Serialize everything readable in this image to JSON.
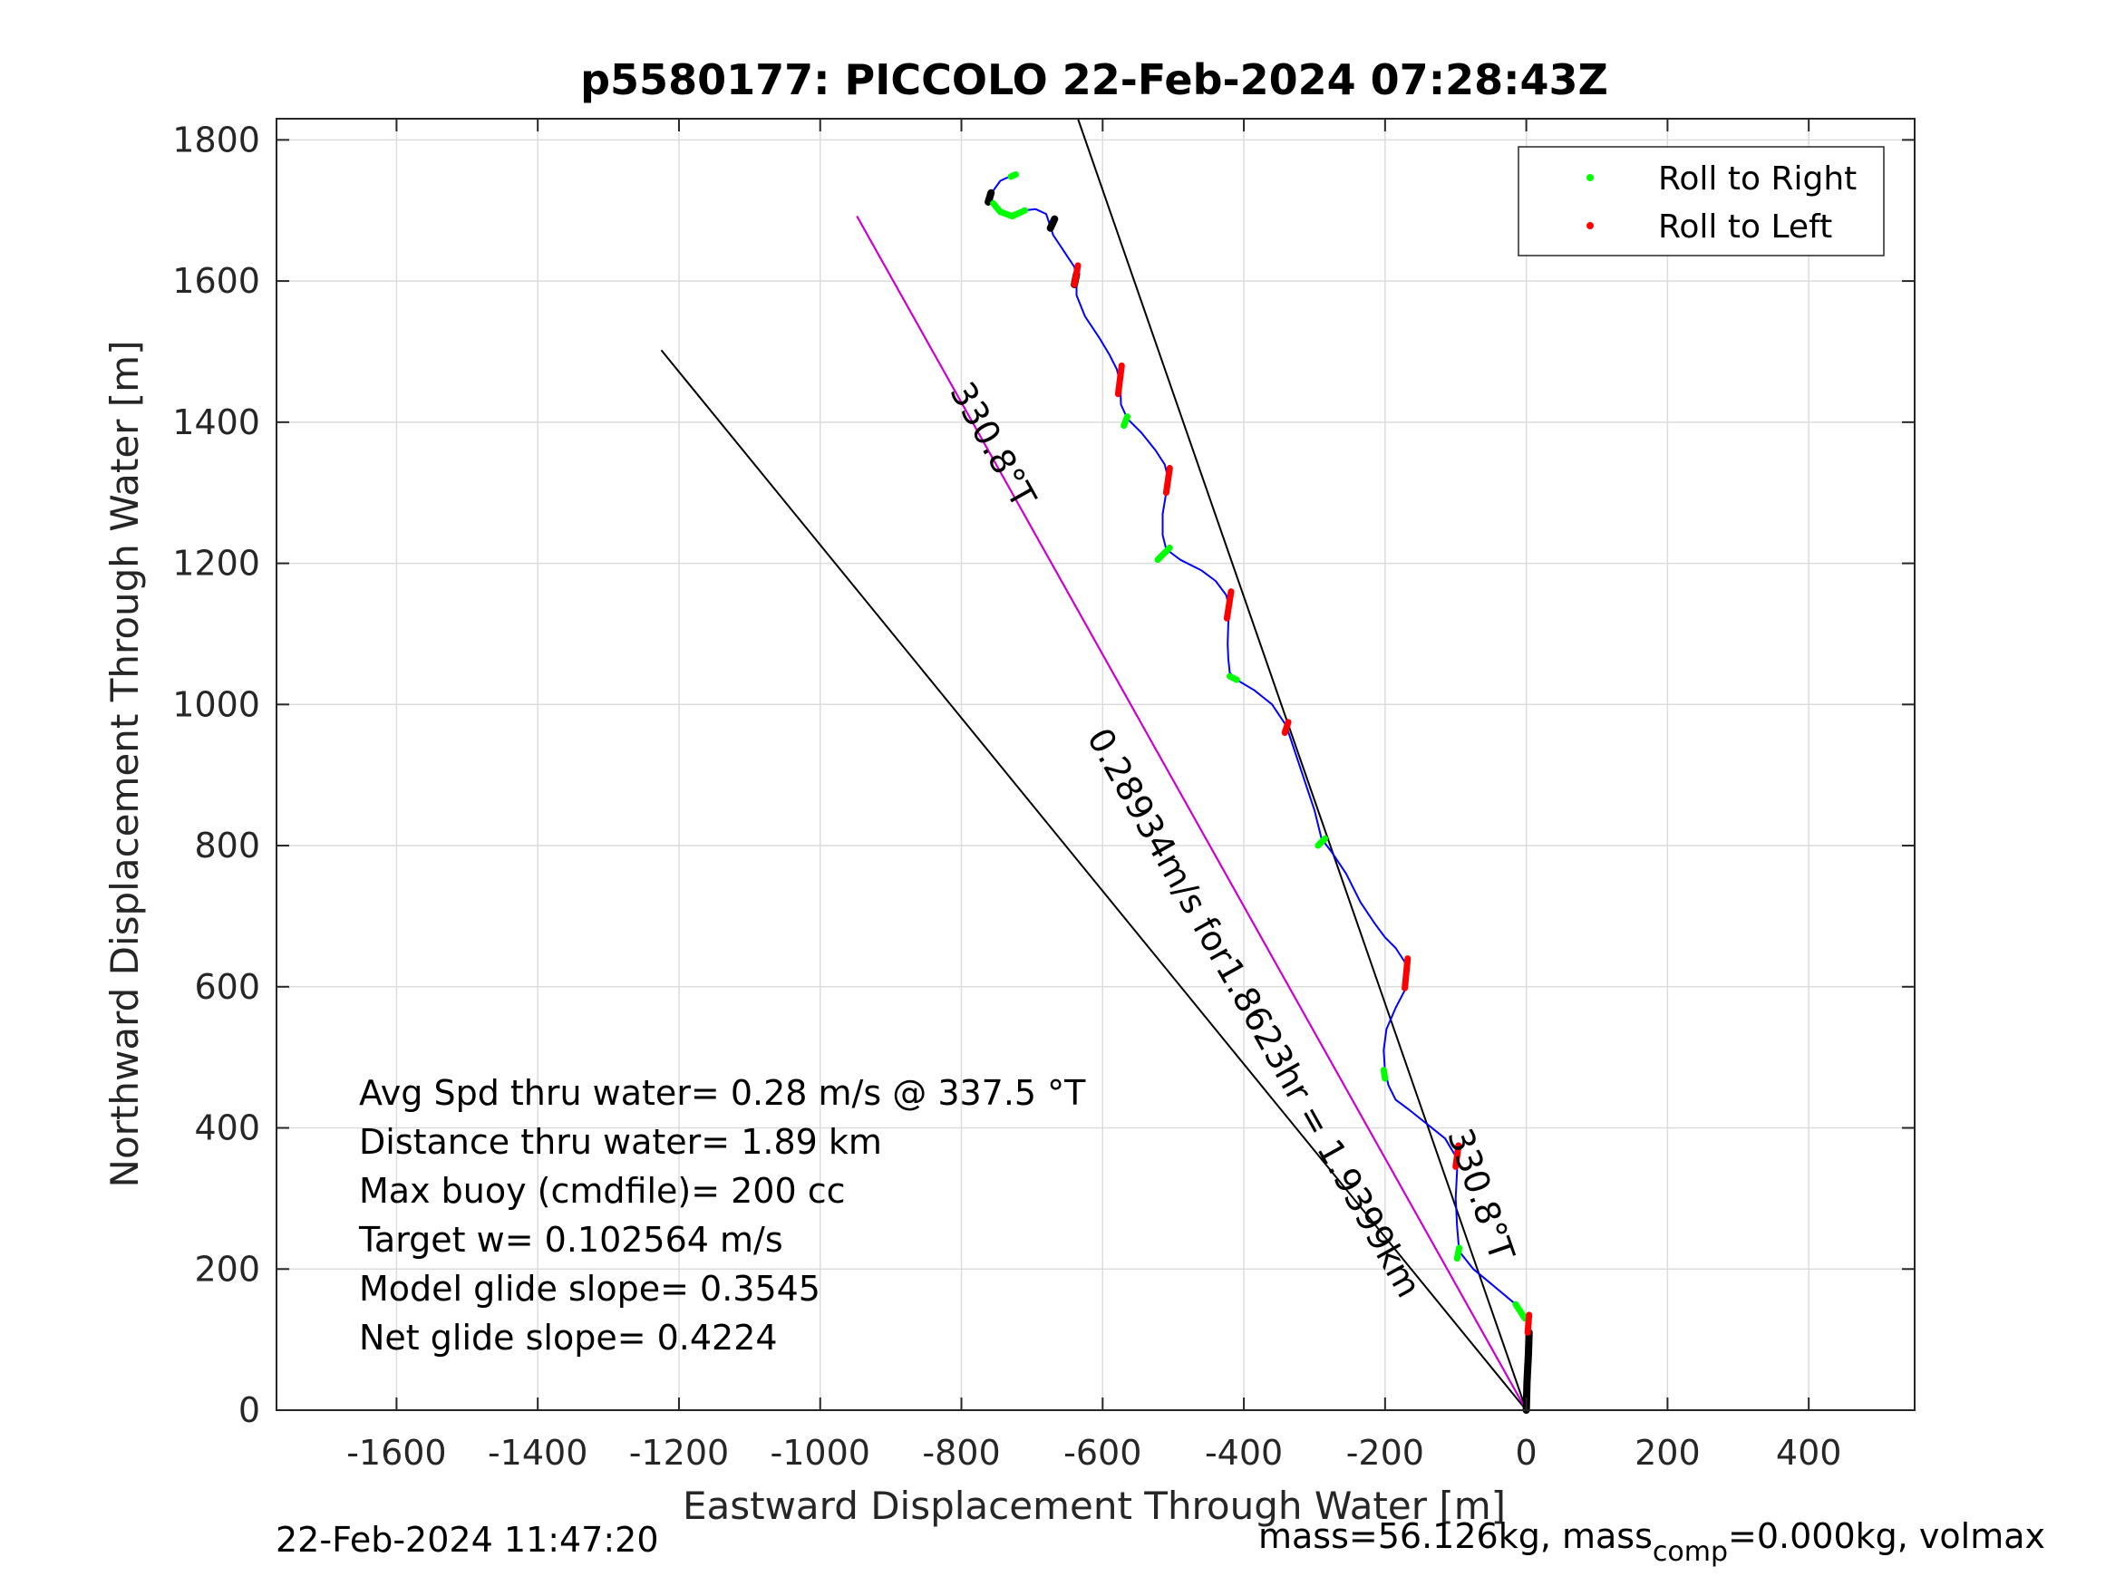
{
  "chart_data": {
    "type": "line",
    "title": "p5580177: PICCOLO 22-Feb-2024 07:28:43Z",
    "xlabel": "Eastward Displacement Through Water [m]",
    "ylabel": "Northward Displacement Through Water [m]",
    "xlim": [
      -1770,
      550
    ],
    "ylim": [
      0,
      1830
    ],
    "x_ticks": [
      -1600,
      -1400,
      -1200,
      -1000,
      -800,
      -600,
      -400,
      -200,
      0,
      200,
      400
    ],
    "x_tick_labels": [
      "-1600",
      "-1400",
      "-1200",
      "-1000",
      "-800",
      "-600",
      "-400",
      "-200",
      "0",
      "200",
      "400"
    ],
    "y_ticks": [
      0,
      200,
      400,
      600,
      800,
      1000,
      1200,
      1400,
      1600,
      1800
    ],
    "y_tick_labels": [
      "0",
      "200",
      "400",
      "600",
      "800",
      "1000",
      "1200",
      "1400",
      "1600",
      "1800"
    ],
    "grid": true,
    "legend_position": "top-right",
    "colors": {
      "track": "#0000ff",
      "roll_right": "#00ff00",
      "roll_left": "#ff0000",
      "surface": "#000000",
      "heading_line": "#cc00cc",
      "reference_line": "#000000"
    },
    "legend": [
      {
        "label": "Roll to Right",
        "color": "#00ff00"
      },
      {
        "label": "Roll to Left",
        "color": "#ff0000"
      }
    ],
    "track": [
      [
        0,
        0
      ],
      [
        2,
        40
      ],
      [
        3,
        80
      ],
      [
        4,
        110
      ],
      [
        2,
        130
      ],
      [
        -15,
        150
      ],
      [
        -45,
        175
      ],
      [
        -75,
        200
      ],
      [
        -95,
        225
      ],
      [
        -98,
        260
      ],
      [
        -100,
        300
      ],
      [
        -98,
        340
      ],
      [
        -100,
        360
      ],
      [
        -115,
        385
      ],
      [
        -140,
        405
      ],
      [
        -165,
        425
      ],
      [
        -185,
        440
      ],
      [
        -195,
        460
      ],
      [
        -200,
        480
      ],
      [
        -202,
        510
      ],
      [
        -198,
        540
      ],
      [
        -185,
        570
      ],
      [
        -172,
        595
      ],
      [
        -168,
        615
      ],
      [
        -172,
        635
      ],
      [
        -185,
        655
      ],
      [
        -200,
        670
      ],
      [
        -215,
        690
      ],
      [
        -235,
        720
      ],
      [
        -255,
        760
      ],
      [
        -275,
        790
      ],
      [
        -290,
        810
      ],
      [
        -300,
        850
      ],
      [
        -310,
        880
      ],
      [
        -320,
        910
      ],
      [
        -330,
        940
      ],
      [
        -340,
        970
      ],
      [
        -360,
        1000
      ],
      [
        -385,
        1020
      ],
      [
        -410,
        1035
      ],
      [
        -420,
        1045
      ],
      [
        -422,
        1065
      ],
      [
        -423,
        1085
      ],
      [
        -422,
        1115
      ],
      [
        -420,
        1135
      ],
      [
        -425,
        1155
      ],
      [
        -440,
        1175
      ],
      [
        -460,
        1190
      ],
      [
        -490,
        1205
      ],
      [
        -510,
        1220
      ],
      [
        -515,
        1240
      ],
      [
        -515,
        1270
      ],
      [
        -510,
        1300
      ],
      [
        -507,
        1320
      ],
      [
        -512,
        1340
      ],
      [
        -525,
        1360
      ],
      [
        -545,
        1385
      ],
      [
        -565,
        1405
      ],
      [
        -574,
        1425
      ],
      [
        -575,
        1455
      ],
      [
        -580,
        1475
      ],
      [
        -590,
        1495
      ],
      [
        -605,
        1520
      ],
      [
        -625,
        1550
      ],
      [
        -637,
        1580
      ],
      [
        -637,
        1605
      ],
      [
        -640,
        1620
      ],
      [
        -650,
        1635
      ],
      [
        -660,
        1650
      ],
      [
        -670,
        1665
      ],
      [
        -675,
        1680
      ],
      [
        -680,
        1695
      ],
      [
        -695,
        1702
      ],
      [
        -712,
        1700
      ],
      [
        -728,
        1695
      ],
      [
        -745,
        1700
      ],
      [
        -757,
        1712
      ],
      [
        -755,
        1728
      ],
      [
        -745,
        1742
      ],
      [
        -732,
        1748
      ],
      [
        -725,
        1750
      ]
    ],
    "roll_to_right_segments": [
      [
        [
          -2,
          130
        ],
        [
          -15,
          150
        ]
      ],
      [
        [
          -98,
          215
        ],
        [
          -95,
          230
        ]
      ],
      [
        [
          -200,
          470
        ],
        [
          -202,
          482
        ]
      ],
      [
        [
          -295,
          800
        ],
        [
          -285,
          810
        ]
      ],
      [
        [
          -420,
          1040
        ],
        [
          -410,
          1035
        ]
      ],
      [
        [
          -522,
          1205
        ],
        [
          -505,
          1222
        ]
      ],
      [
        [
          -570,
          1395
        ],
        [
          -565,
          1408
        ]
      ],
      [
        [
          -755,
          1710
        ],
        [
          -745,
          1698
        ],
        [
          -728,
          1692
        ],
        [
          -710,
          1700
        ]
      ],
      [
        [
          -730,
          1748
        ],
        [
          -723,
          1751
        ]
      ]
    ],
    "roll_to_left_segments": [
      [
        [
          2,
          110
        ],
        [
          4,
          135
        ]
      ],
      [
        [
          -100,
          345
        ],
        [
          -96,
          375
        ]
      ],
      [
        [
          -172,
          598
        ],
        [
          -168,
          640
        ]
      ],
      [
        [
          -342,
          960
        ],
        [
          -337,
          975
        ]
      ],
      [
        [
          -424,
          1122
        ],
        [
          -418,
          1160
        ]
      ],
      [
        [
          -510,
          1300
        ],
        [
          -505,
          1335
        ]
      ],
      [
        [
          -578,
          1440
        ],
        [
          -573,
          1480
        ]
      ],
      [
        [
          -640,
          1595
        ],
        [
          -635,
          1622
        ]
      ]
    ],
    "surface_segments": [
      [
        [
          0,
          0
        ],
        [
          1,
          40
        ],
        [
          3,
          80
        ],
        [
          4,
          110
        ]
      ],
      [
        [
          -640,
          1595
        ],
        [
          -637,
          1610
        ]
      ],
      [
        [
          -762,
          1712
        ],
        [
          -758,
          1725
        ]
      ],
      [
        [
          -674,
          1675
        ],
        [
          -668,
          1688
        ]
      ]
    ],
    "heading_line": {
      "from": [
        0,
        0
      ],
      "to": [
        -948,
        1692
      ],
      "label": "330.8°T"
    },
    "reference_lines": [
      {
        "from": [
          0,
          0
        ],
        "to": [
          -1225,
          1502
        ]
      },
      {
        "from": [
          0,
          0
        ],
        "to": [
          -635,
          1830
        ]
      }
    ],
    "rotated_labels": [
      {
        "text": "330.8°T",
        "at": [
          -770,
          1360
        ],
        "angle_deg": -119.2
      },
      {
        "text": "0.28934m/s for1.8623hr = 1.9399km",
        "at": [
          -400,
          555
        ],
        "angle_deg": -119.2
      },
      {
        "text": "330.8°T",
        "at": [
          -80,
          300
        ],
        "angle_deg": -109.1
      }
    ],
    "annotations": [
      "Avg Spd thru water=  0.28 m/s @ 337.5 °T",
      "Distance thru water=  1.89 km",
      "Max buoy (cmdfile)= 200 cc",
      "Target w= 0.102564 m/s",
      "Model glide slope= 0.3545",
      "Net glide slope= 0.4224"
    ]
  },
  "footer": {
    "timestamp": "22-Feb-2024 11:47:20",
    "mass_prefix": "mass=56.126kg, mass",
    "mass_sub": "comp",
    "mass_suffix": "=0.000kg, volmax"
  }
}
